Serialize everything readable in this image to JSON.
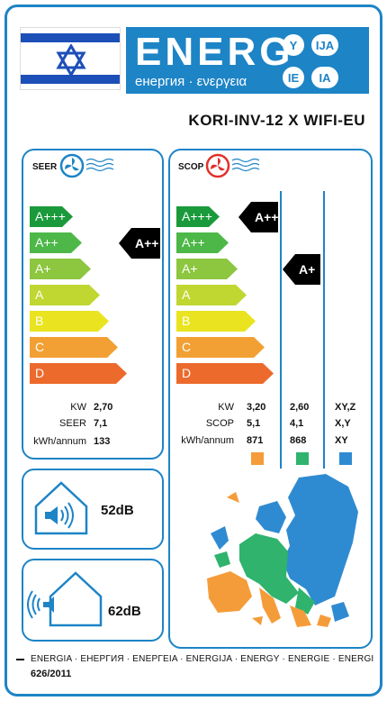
{
  "header": {
    "energ_label": "ENERG",
    "subtitle": "енергия · ενεργεια",
    "badges": [
      "Y",
      "IJA",
      "IE",
      "IA"
    ]
  },
  "model": "KORI-INV-12 X WIFI-EU",
  "colors": {
    "frame_blue": "#1d84c6",
    "flag_blue": "#1d4fb8",
    "class_a3": "#1a9a3b",
    "class_a2": "#4db848",
    "class_a1": "#8dc63f",
    "class_a": "#bfd730",
    "class_b": "#e9e41f",
    "class_c": "#f2a033",
    "class_d": "#ec6a2c",
    "zone_warm": "#f59c3a",
    "zone_average": "#2fb36d",
    "zone_cold": "#2f8bd1"
  },
  "seer_panel": {
    "label": "SEER",
    "icon": "fan-icon-blue",
    "classes": [
      "A+++",
      "A++",
      "A+",
      "A",
      "B",
      "C",
      "D"
    ],
    "rating": "A++",
    "rows": [
      {
        "label": "KW",
        "value": "2,70"
      },
      {
        "label": "SEER",
        "value": "7,1"
      },
      {
        "label": "kWh/annum",
        "value": "133"
      }
    ]
  },
  "scop_panel": {
    "label": "SCOP",
    "icon": "fan-icon-red",
    "classes": [
      "A+++",
      "A++",
      "A+",
      "A",
      "B",
      "C",
      "D"
    ],
    "rating_average": "A+++",
    "rating_warm": "A+",
    "row_labels": [
      "KW",
      "SCOP",
      "kWh/annum"
    ],
    "col_average": [
      "3,20",
      "5,1",
      "871"
    ],
    "col_warm": [
      "2,60",
      "4,1",
      "868"
    ],
    "col_cold": [
      "XY,Z",
      "X,Y",
      "XY"
    ]
  },
  "noise": {
    "indoor": "52dB",
    "outdoor": "62dB"
  },
  "footer": {
    "languages": "ENERGIA · ЕНЕРГИЯ · ΕΝΕΡΓΕΙΑ · ENERGIJA · ENERGY · ENERGIE · ENERGI",
    "regulation": "626/2011"
  }
}
